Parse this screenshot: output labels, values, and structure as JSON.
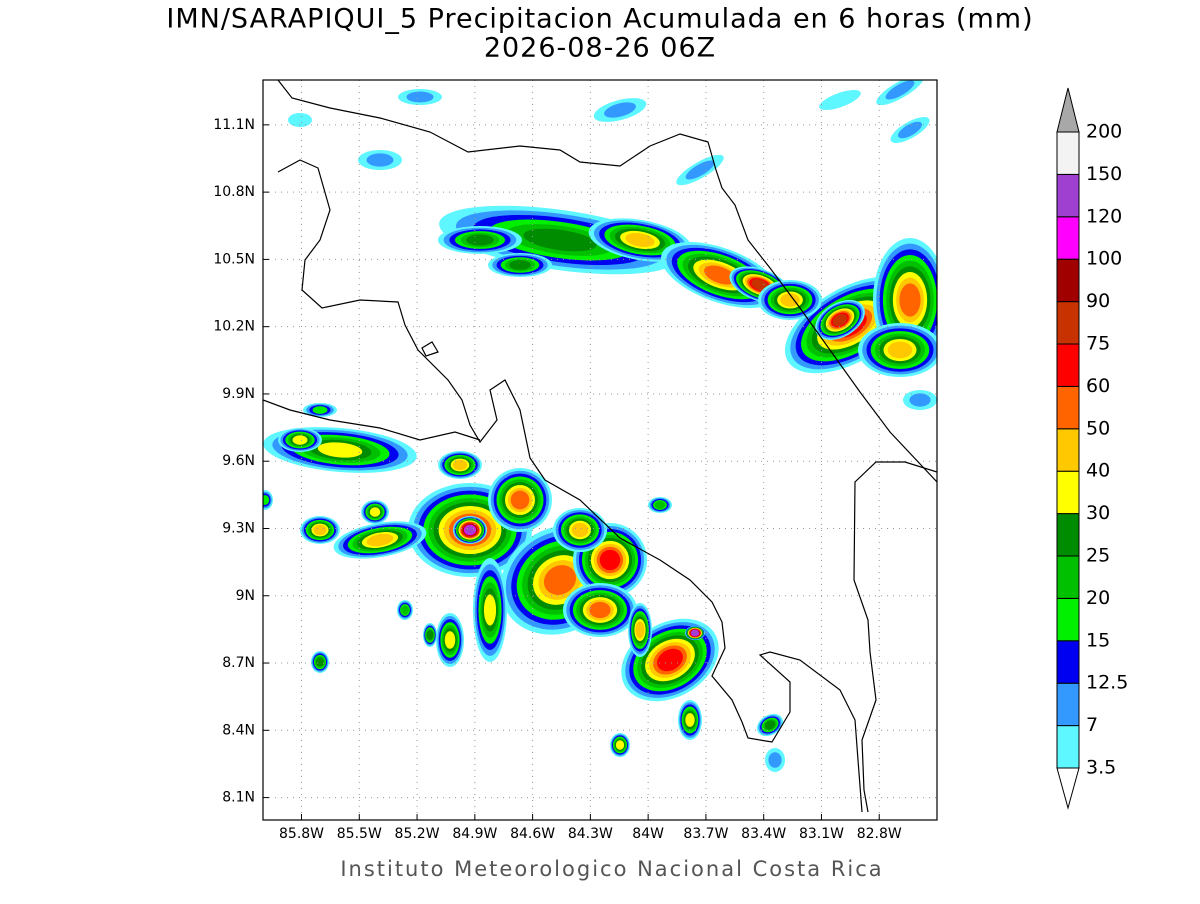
{
  "map": {
    "title": "IMN/SARAPIQUI_5 Precipitacion Acumulada en 6 horas (mm)",
    "subtitle": "2026-08-26 06Z",
    "footer": "Instituto Meteorologico Nacional Costa Rica",
    "xlim": [
      -86.0,
      -82.5
    ],
    "ylim": [
      8.0,
      11.3
    ],
    "xticks": [
      {
        "value": -85.8,
        "label": "85.8W"
      },
      {
        "value": -85.5,
        "label": "85.5W"
      },
      {
        "value": -85.2,
        "label": "85.2W"
      },
      {
        "value": -84.9,
        "label": "84.9W"
      },
      {
        "value": -84.6,
        "label": "84.6W"
      },
      {
        "value": -84.3,
        "label": "84.3W"
      },
      {
        "value": -84.0,
        "label": "84W"
      },
      {
        "value": -83.7,
        "label": "83.7W"
      },
      {
        "value": -83.4,
        "label": "83.4W"
      },
      {
        "value": -83.1,
        "label": "83.1W"
      },
      {
        "value": -82.8,
        "label": "82.8W"
      }
    ],
    "yticks": [
      {
        "value": 8.1,
        "label": "8.1N"
      },
      {
        "value": 8.4,
        "label": "8.4N"
      },
      {
        "value": 8.7,
        "label": "8.7N"
      },
      {
        "value": 9.0,
        "label": "9N"
      },
      {
        "value": 9.3,
        "label": "9.3N"
      },
      {
        "value": 9.6,
        "label": "9.6N"
      },
      {
        "value": 9.9,
        "label": "9.9N"
      },
      {
        "value": 10.2,
        "label": "10.2N"
      },
      {
        "value": 10.5,
        "label": "10.5N"
      },
      {
        "value": 10.8,
        "label": "10.8N"
      },
      {
        "value": 11.1,
        "label": "11.1N"
      }
    ],
    "grid": true,
    "colorbar": {
      "levels": [
        3.5,
        7,
        12.5,
        15,
        20,
        25,
        30,
        40,
        50,
        60,
        75,
        90,
        100,
        120,
        150,
        200
      ],
      "colors": [
        "#5ef6ff",
        "#3399ff",
        "#0000f0",
        "#00f000",
        "#00c000",
        "#008c00",
        "#ffff00",
        "#ffc800",
        "#ff6400",
        "#ff0000",
        "#c83200",
        "#a00000",
        "#ff00ff",
        "#a040d0",
        "#f3f3f3"
      ],
      "under_color": "#ffffff",
      "over_color": "#a8a8a8"
    }
  }
}
